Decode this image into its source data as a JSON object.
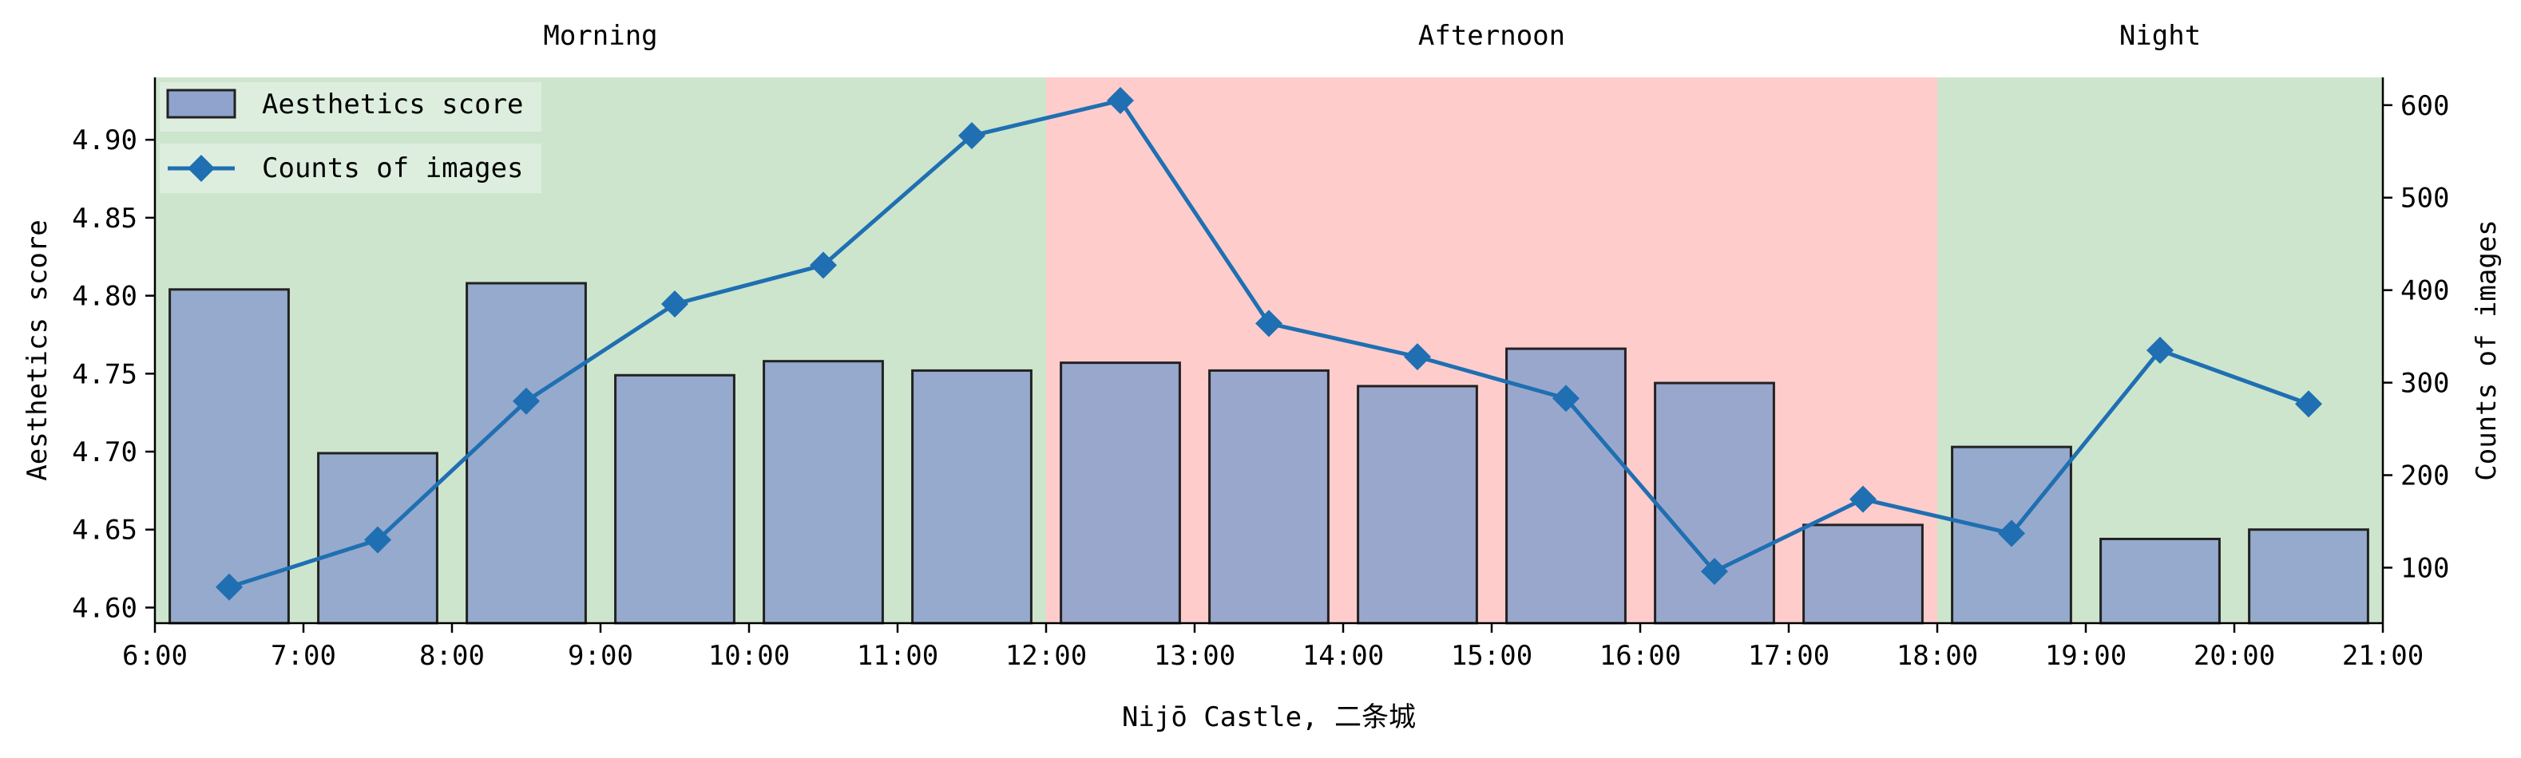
{
  "chart_data": {
    "type": "bar+line",
    "xlabel": "Nijō Castle, 二条城",
    "ylabel_left": "Aesthetics score",
    "ylabel_right": "Counts of images",
    "x_ticks": [
      "6:00",
      "7:00",
      "8:00",
      "9:00",
      "10:00",
      "11:00",
      "12:00",
      "13:00",
      "14:00",
      "15:00",
      "16:00",
      "17:00",
      "18:00",
      "19:00",
      "20:00",
      "21:00"
    ],
    "x_range": [
      6,
      21
    ],
    "ylim_left": [
      4.59,
      4.94
    ],
    "yticks_left": [
      4.6,
      4.65,
      4.7,
      4.75,
      4.8,
      4.85,
      4.9
    ],
    "ylim_right": [
      40,
      630
    ],
    "yticks_right": [
      100,
      200,
      300,
      400,
      500,
      600
    ],
    "periods": [
      {
        "label": "Morning",
        "start": 6,
        "end": 12,
        "color": "#cde5cd"
      },
      {
        "label": "Afternoon",
        "start": 12,
        "end": 18,
        "color": "#ffcccc"
      },
      {
        "label": "Night",
        "start": 18,
        "end": 21,
        "color": "#cde5cd"
      }
    ],
    "bars": {
      "name": "Aesthetics score",
      "color": "#8fa3cc",
      "x": [
        6.5,
        7.5,
        8.5,
        9.5,
        10.5,
        11.5,
        12.5,
        13.5,
        14.5,
        15.5,
        16.5,
        17.5,
        18.5,
        19.5,
        20.5
      ],
      "values": [
        4.804,
        4.699,
        4.808,
        4.749,
        4.758,
        4.752,
        4.757,
        4.752,
        4.742,
        4.766,
        4.744,
        4.653,
        4.703,
        4.644,
        4.65
      ]
    },
    "line": {
      "name": "Counts of images",
      "color": "#1f6fb2",
      "x": [
        6.5,
        7.5,
        8.5,
        9.5,
        10.5,
        11.5,
        12.5,
        13.5,
        14.5,
        15.5,
        16.5,
        17.5,
        18.5,
        19.5,
        20.5
      ],
      "values": [
        79,
        130,
        280,
        385,
        427,
        567,
        605,
        364,
        328,
        283,
        96,
        174,
        137,
        335,
        277
      ]
    },
    "legend": {
      "placement": "top-left"
    }
  }
}
